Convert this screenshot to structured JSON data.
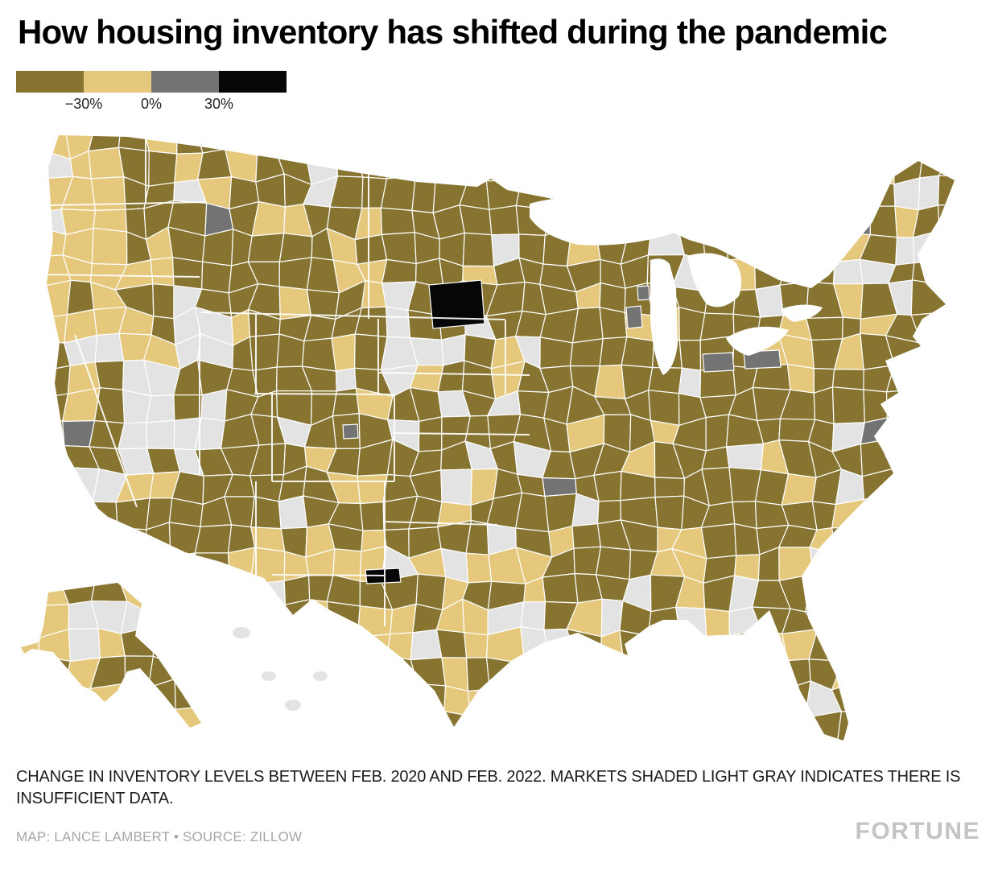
{
  "title": "How housing inventory has shifted during the pandemic",
  "legend": {
    "tick_labels": [
      "−30%",
      "0%",
      "30%"
    ],
    "swatches": [
      {
        "name": "decrease-large",
        "color": "#877431"
      },
      {
        "name": "decrease",
        "color": "#e5c87c"
      },
      {
        "name": "increase",
        "color": "#737373"
      },
      {
        "name": "increase-large",
        "color": "#060606"
      }
    ]
  },
  "map": {
    "region": "United States",
    "type": "county-level choropleth",
    "colors": {
      "dark": "#877431",
      "tan": "#e5c87c",
      "gray": "#737373",
      "black": "#060606",
      "insufficient": "#e3e3e3"
    }
  },
  "notes": {
    "description": "CHANGE IN INVENTORY LEVELS BETWEEN FEB. 2020 AND FEB. 2022. MARKETS SHADED LIGHT GRAY INDICATES THERE IS INSUFFICIENT DATA.",
    "credit": "MAP: LANCE LAMBERT • SOURCE: ZILLOW",
    "brand": "FORTUNE"
  }
}
